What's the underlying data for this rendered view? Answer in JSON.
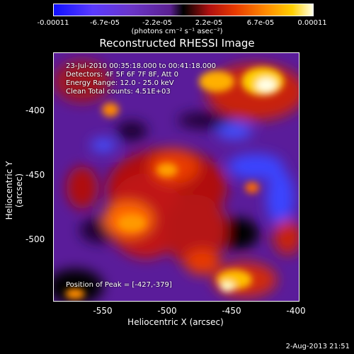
{
  "colorbar": {
    "ticks": [
      "-0.00011",
      "-6.7e-05",
      "-2.2e-05",
      "2.2e-05",
      "6.7e-05",
      "0.00011"
    ],
    "units": "(photons cm⁻² s⁻¹ asec⁻²)"
  },
  "title": "Reconstructed RHESSI Image",
  "info": {
    "time": "23-Jul-2010 00:35:18.000 to 00:41:18.000",
    "detectors": "Detectors: 4F 5F 6F 7F 8F, Att 0",
    "energy": "Energy Range: 12.0 - 25.0 keV",
    "clean": "Clean    Total counts: 4.51E+03"
  },
  "peak": "Position of Peak = [-427,-379]",
  "axes": {
    "xlabel": "Heliocentric X (arcsec)",
    "ylabel": "Heliocentric Y (arcsec)",
    "xticks": [
      "-550",
      "-500",
      "-450",
      "-400"
    ],
    "yticks": [
      "-400",
      "-450",
      "-500"
    ]
  },
  "timestamp": "2-Aug-2013 21:51",
  "colors": {
    "negative": "#6a35c8",
    "peak": "#ffffe6",
    "hot": "#ff8c00"
  }
}
